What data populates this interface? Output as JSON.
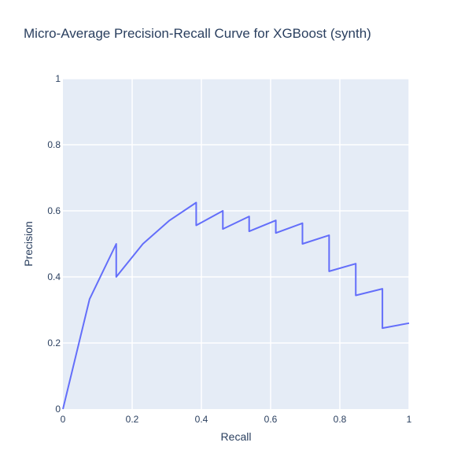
{
  "chart_data": {
    "type": "line",
    "title": "Micro-Average Precision-Recall Curve for XGBoost (synth)",
    "xlabel": "Recall",
    "ylabel": "Precision",
    "xlim": [
      0,
      1
    ],
    "ylim": [
      0,
      1
    ],
    "xticks": [
      0,
      0.2,
      0.4,
      0.6,
      0.8,
      1
    ],
    "yticks": [
      0,
      0.2,
      0.4,
      0.6,
      0.8,
      1
    ],
    "xtick_labels": [
      "0",
      "0.2",
      "0.4",
      "0.6",
      "0.8",
      "1"
    ],
    "ytick_labels": [
      "0",
      "0.2",
      "0.4",
      "0.6",
      "0.8",
      "1"
    ],
    "grid": true,
    "legend": false,
    "series": [
      {
        "color": "#636efa",
        "x": [
          0,
          0.077,
          0.154,
          0.154,
          0.231,
          0.308,
          0.385,
          0.385,
          0.462,
          0.462,
          0.538,
          0.538,
          0.615,
          0.615,
          0.692,
          0.692,
          0.769,
          0.769,
          0.846,
          0.846,
          0.923,
          0.923,
          1.0
        ],
        "y": [
          0,
          0.333,
          0.5,
          0.4,
          0.5,
          0.571,
          0.625,
          0.556,
          0.6,
          0.545,
          0.583,
          0.538,
          0.571,
          0.533,
          0.5625,
          0.5,
          0.526,
          0.417,
          0.44,
          0.344,
          0.364,
          0.245,
          0.26
        ]
      }
    ]
  }
}
